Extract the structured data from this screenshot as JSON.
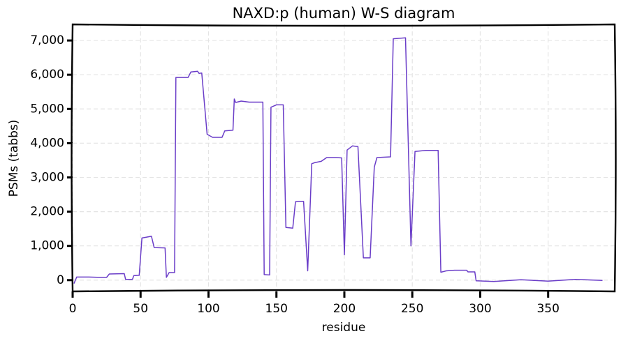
{
  "chart_data": {
    "type": "line",
    "title": "NAXD:p (human) W-S diagram",
    "xlabel": "residue",
    "ylabel": "PSMs (tabbs)",
    "color": "#6a3dc8",
    "grid": true,
    "xlim": [
      0,
      399
    ],
    "ylim": [
      -330,
      7470
    ],
    "xticks": [
      0,
      50,
      100,
      150,
      200,
      250,
      300,
      350
    ],
    "yticks": [
      0,
      {
        "value": 1000,
        "label": "1,000"
      },
      {
        "value": 2000,
        "label": "2,000"
      },
      {
        "value": 3000,
        "label": "3,000"
      },
      {
        "value": 4000,
        "label": "4,000"
      },
      {
        "value": 5000,
        "label": "5,000"
      },
      {
        "value": 6000,
        "label": "6,000"
      },
      {
        "value": 7000,
        "label": "7,000"
      }
    ],
    "x": [
      1,
      3,
      12,
      20,
      25,
      27,
      38,
      39,
      44,
      45,
      49,
      51,
      58,
      60,
      68,
      69,
      71,
      75,
      76,
      85,
      87,
      92,
      93,
      95,
      99,
      103,
      110,
      112,
      118,
      119,
      120,
      124,
      130,
      140,
      141,
      145,
      146,
      150,
      155,
      157,
      162,
      164,
      170,
      173,
      176,
      178,
      183,
      187,
      194,
      198,
      200,
      202,
      206,
      210,
      214,
      219,
      222,
      224,
      234,
      236,
      245,
      249,
      252,
      260,
      269,
      271,
      275,
      281,
      290,
      291,
      296,
      297,
      310,
      330,
      350,
      370,
      390
    ],
    "values": [
      -100,
      90,
      90,
      80,
      80,
      180,
      190,
      20,
      20,
      130,
      140,
      1230,
      1280,
      950,
      940,
      80,
      220,
      220,
      5920,
      5920,
      6080,
      6100,
      6040,
      6050,
      4260,
      4170,
      4170,
      4360,
      4380,
      5290,
      5190,
      5230,
      5200,
      5200,
      160,
      150,
      5050,
      5120,
      5120,
      1540,
      1520,
      2290,
      2300,
      270,
      3400,
      3430,
      3470,
      3580,
      3580,
      3570,
      740,
      3800,
      3920,
      3900,
      650,
      650,
      3300,
      3580,
      3600,
      7050,
      7080,
      1000,
      3760,
      3790,
      3790,
      230,
      270,
      290,
      290,
      240,
      240,
      -20,
      -40,
      10,
      -30,
      20,
      -10
    ]
  }
}
